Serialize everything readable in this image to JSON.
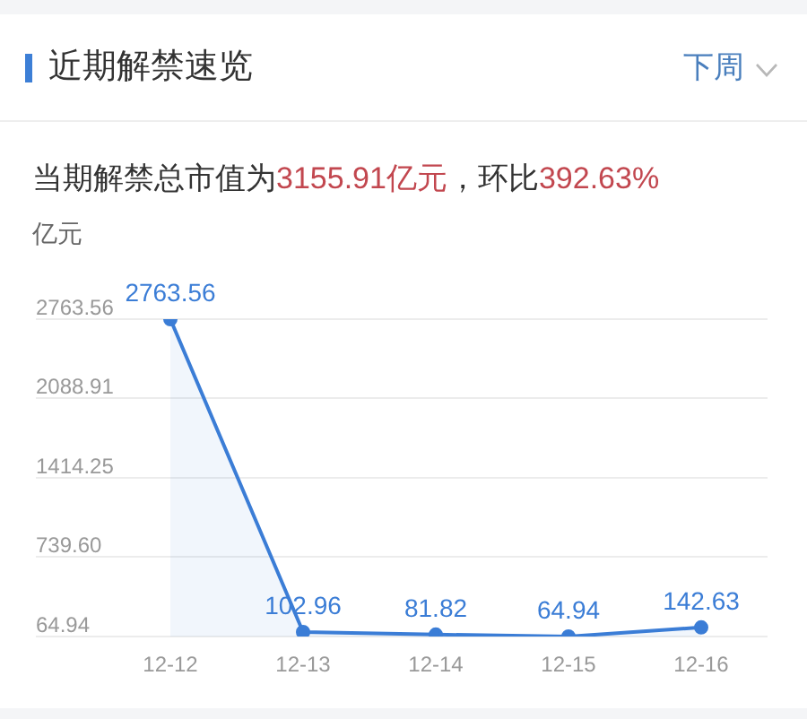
{
  "chart_data": {
    "type": "area",
    "title": "近期解禁速览",
    "subtitle": "当期解禁总市值为3155.91亿元，环比392.63%",
    "ylabel": "亿元",
    "annotations": [
      "下周"
    ],
    "categories": [
      "12-12",
      "12-13",
      "12-14",
      "12-15",
      "12-16"
    ],
    "series": [
      {
        "color": "#3b7dd6",
        "values": [
          2763.56,
          102.96,
          81.82,
          64.94,
          142.63
        ]
      }
    ],
    "ylim": [
      64.94,
      2763.56
    ],
    "yticks": [
      64.94,
      {
        "value": 739.6,
        "label": "739.60"
      },
      1414.25,
      2088.91,
      2763.56
    ],
    "grid": "y",
    "marker": "circle",
    "data_labels": true
  }
}
